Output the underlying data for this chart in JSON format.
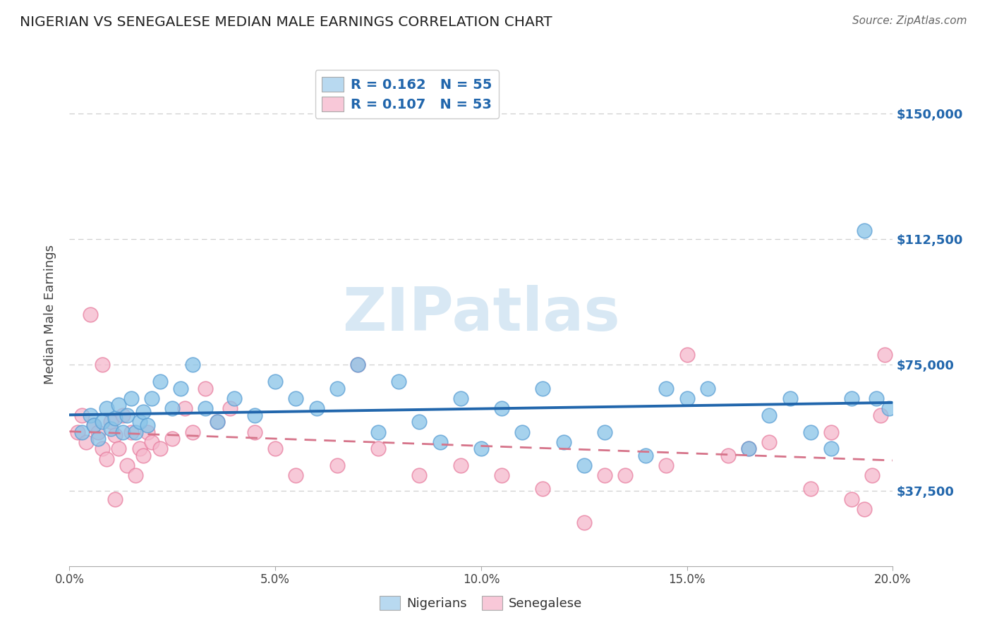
{
  "title": "NIGERIAN VS SENEGALESE MEDIAN MALE EARNINGS CORRELATION CHART",
  "source": "Source: ZipAtlas.com",
  "xlabel_vals": [
    0.0,
    5.0,
    10.0,
    15.0,
    20.0
  ],
  "ylabel_vals": [
    37500,
    75000,
    112500,
    150000
  ],
  "ylabel_labels": [
    "$37,500",
    "$75,000",
    "$112,500",
    "$150,000"
  ],
  "xmin": 0.0,
  "xmax": 20.0,
  "ymin": 15000,
  "ymax": 165000,
  "nigerian_R": 0.162,
  "nigerian_N": 55,
  "senegalese_R": 0.107,
  "senegalese_N": 53,
  "blue_scatter_color": "#89c4e8",
  "blue_edge_color": "#5b9fd4",
  "pink_scatter_color": "#f5b8cc",
  "pink_edge_color": "#e87fa0",
  "blue_line_color": "#2166ac",
  "pink_line_color": "#d6748a",
  "legend_blue_fill": "#b8d9f0",
  "legend_pink_fill": "#f8c8d8",
  "text_color_blue": "#2166ac",
  "grid_color": "#d0d0d0",
  "watermark_color": "#d8e8f4",
  "nigerian_x": [
    0.3,
    0.5,
    0.6,
    0.7,
    0.8,
    0.9,
    1.0,
    1.1,
    1.2,
    1.3,
    1.4,
    1.5,
    1.6,
    1.7,
    1.8,
    1.9,
    2.0,
    2.2,
    2.5,
    2.7,
    3.0,
    3.3,
    3.6,
    4.0,
    4.5,
    5.0,
    5.5,
    6.0,
    6.5,
    7.0,
    7.5,
    8.0,
    8.5,
    9.0,
    9.5,
    10.0,
    10.5,
    11.0,
    11.5,
    12.0,
    12.5,
    13.0,
    14.0,
    14.5,
    15.0,
    15.5,
    16.5,
    17.0,
    17.5,
    18.0,
    18.5,
    19.0,
    19.3,
    19.6,
    19.9
  ],
  "nigerian_y": [
    55000,
    60000,
    57000,
    53000,
    58000,
    62000,
    56000,
    59000,
    63000,
    55000,
    60000,
    65000,
    55000,
    58000,
    61000,
    57000,
    65000,
    70000,
    62000,
    68000,
    75000,
    62000,
    58000,
    65000,
    60000,
    70000,
    65000,
    62000,
    68000,
    75000,
    55000,
    70000,
    58000,
    52000,
    65000,
    50000,
    62000,
    55000,
    68000,
    52000,
    45000,
    55000,
    48000,
    68000,
    65000,
    68000,
    50000,
    60000,
    65000,
    55000,
    50000,
    65000,
    115000,
    65000,
    62000
  ],
  "senegalese_x": [
    0.2,
    0.3,
    0.4,
    0.5,
    0.6,
    0.7,
    0.8,
    0.9,
    1.0,
    1.1,
    1.2,
    1.3,
    1.4,
    1.5,
    1.6,
    1.7,
    1.8,
    1.9,
    2.0,
    2.2,
    2.5,
    2.8,
    3.0,
    3.3,
    3.6,
    3.9,
    4.5,
    5.0,
    5.5,
    6.5,
    7.0,
    7.5,
    8.5,
    9.5,
    10.5,
    11.5,
    12.5,
    13.5,
    14.5,
    15.0,
    16.0,
    16.5,
    17.0,
    18.0,
    18.5,
    19.0,
    19.3,
    19.5,
    19.7,
    19.8,
    13.0,
    1.1,
    0.8
  ],
  "senegalese_y": [
    55000,
    60000,
    52000,
    90000,
    57000,
    55000,
    50000,
    47000,
    58000,
    54000,
    50000,
    60000,
    45000,
    55000,
    42000,
    50000,
    48000,
    55000,
    52000,
    50000,
    53000,
    62000,
    55000,
    68000,
    58000,
    62000,
    55000,
    50000,
    42000,
    45000,
    75000,
    50000,
    42000,
    45000,
    42000,
    38000,
    28000,
    42000,
    45000,
    78000,
    48000,
    50000,
    52000,
    38000,
    55000,
    35000,
    32000,
    42000,
    60000,
    78000,
    42000,
    35000,
    75000
  ]
}
